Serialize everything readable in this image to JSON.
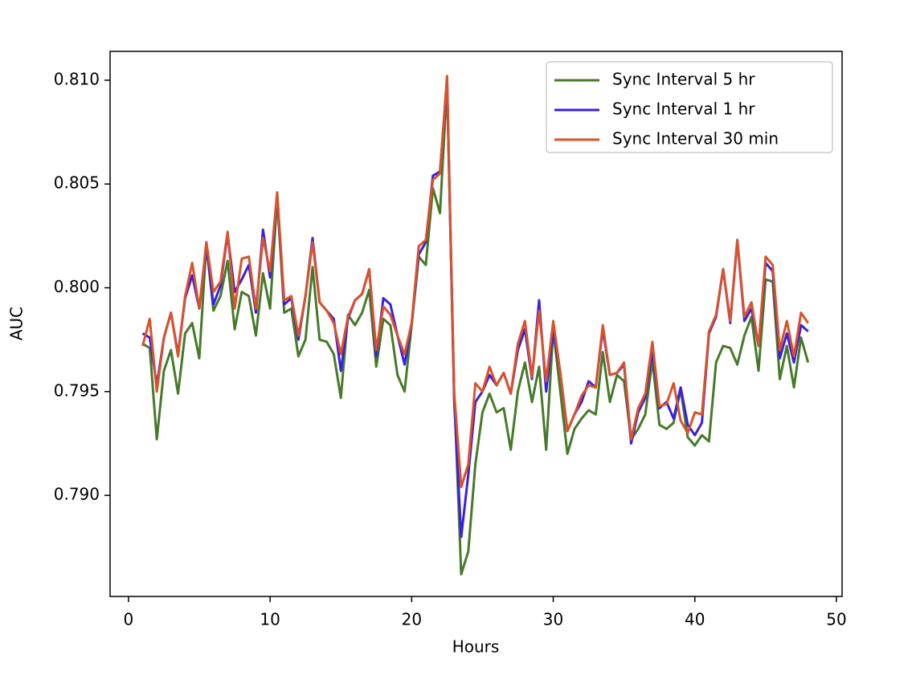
{
  "chart_data": {
    "type": "line",
    "x_label": "Hours",
    "y_label": "AUC",
    "x": [
      1,
      1.5,
      2,
      2.5,
      3,
      3.5,
      4,
      4.5,
      5,
      5.5,
      6,
      6.5,
      7,
      7.5,
      8,
      8.5,
      9,
      9.5,
      10,
      10.5,
      11,
      11.5,
      12,
      12.5,
      13,
      13.5,
      14,
      14.5,
      15,
      15.5,
      16,
      16.5,
      17,
      17.5,
      18,
      18.5,
      19,
      19.5,
      20,
      20.5,
      21,
      21.5,
      22,
      22.5,
      23,
      23.5,
      24,
      24.5,
      25,
      25.5,
      26,
      26.5,
      27,
      27.5,
      28,
      28.5,
      29,
      29.5,
      30,
      30.5,
      31,
      31.5,
      32,
      32.5,
      33,
      33.5,
      34,
      34.5,
      35,
      35.5,
      36,
      36.5,
      37,
      37.5,
      38,
      38.5,
      39,
      39.5,
      40,
      40.5,
      41,
      41.5,
      42,
      42.5,
      43,
      43.5,
      44,
      44.5,
      45,
      45.5,
      46,
      46.5,
      47,
      47.5,
      48
    ],
    "series": [
      {
        "name": "Sync Interval 5 hr",
        "color": "#467a2a",
        "values": [
          0.7973,
          0.7971,
          0.7927,
          0.796,
          0.797,
          0.7949,
          0.7978,
          0.7983,
          0.7966,
          0.8021,
          0.7989,
          0.7996,
          0.8013,
          0.798,
          0.7998,
          0.7996,
          0.7977,
          0.8007,
          0.799,
          0.8043,
          0.7988,
          0.799,
          0.7967,
          0.7975,
          0.801,
          0.7975,
          0.7974,
          0.7968,
          0.7947,
          0.7987,
          0.7982,
          0.7988,
          0.7999,
          0.7962,
          0.7985,
          0.7982,
          0.7958,
          0.795,
          0.7982,
          0.8015,
          0.8011,
          0.8048,
          0.8036,
          0.8098,
          0.795,
          0.7862,
          0.7873,
          0.7915,
          0.794,
          0.7949,
          0.794,
          0.7942,
          0.7922,
          0.795,
          0.7964,
          0.7945,
          0.7962,
          0.7922,
          0.798,
          0.795,
          0.792,
          0.7932,
          0.7937,
          0.7941,
          0.7939,
          0.7969,
          0.7945,
          0.7958,
          0.7955,
          0.7927,
          0.7932,
          0.7939,
          0.7965,
          0.7934,
          0.7932,
          0.7935,
          0.7951,
          0.7928,
          0.7924,
          0.7929,
          0.7926,
          0.7964,
          0.7972,
          0.7971,
          0.7963,
          0.7977,
          0.7986,
          0.796,
          0.8004,
          0.8003,
          0.7956,
          0.7972,
          0.7952,
          0.7976,
          0.7964
        ]
      },
      {
        "name": "Sync Interval 1 hr",
        "color": "#3a1fe0",
        "values": [
          0.7978,
          0.7976,
          0.7953,
          0.7976,
          0.7988,
          0.7968,
          0.7995,
          0.8006,
          0.799,
          0.802,
          0.7992,
          0.8001,
          0.8026,
          0.7998,
          0.8004,
          0.8011,
          0.7988,
          0.8028,
          0.8005,
          0.8045,
          0.7992,
          0.7995,
          0.7975,
          0.7996,
          0.8024,
          0.7993,
          0.7989,
          0.7985,
          0.796,
          0.7985,
          0.7994,
          0.7997,
          0.8009,
          0.7967,
          0.7995,
          0.7992,
          0.7977,
          0.7963,
          0.7983,
          0.8016,
          0.8022,
          0.8054,
          0.8056,
          0.81,
          0.7946,
          0.788,
          0.791,
          0.7945,
          0.795,
          0.7958,
          0.7953,
          0.7959,
          0.7949,
          0.797,
          0.798,
          0.7956,
          0.7994,
          0.795,
          0.798,
          0.7959,
          0.7931,
          0.7939,
          0.7945,
          0.7955,
          0.7952,
          0.798,
          0.7958,
          0.7959,
          0.7963,
          0.7925,
          0.794,
          0.7947,
          0.797,
          0.7942,
          0.7945,
          0.7937,
          0.7952,
          0.7934,
          0.7929,
          0.7935,
          0.7978,
          0.7986,
          0.8009,
          0.7983,
          0.8023,
          0.7984,
          0.799,
          0.7972,
          0.8012,
          0.8008,
          0.7966,
          0.7978,
          0.7964,
          0.7982,
          0.7979
        ]
      },
      {
        "name": "Sync Interval 30 min",
        "color": "#d9522a",
        "values": [
          0.7972,
          0.7985,
          0.795,
          0.7976,
          0.7988,
          0.7967,
          0.7996,
          0.8012,
          0.799,
          0.8022,
          0.7998,
          0.8003,
          0.8027,
          0.799,
          0.8014,
          0.8015,
          0.799,
          0.8024,
          0.8008,
          0.8046,
          0.7994,
          0.7996,
          0.7977,
          0.7996,
          0.8022,
          0.7993,
          0.7989,
          0.7983,
          0.7968,
          0.7986,
          0.7994,
          0.7997,
          0.8009,
          0.797,
          0.7991,
          0.7987,
          0.7977,
          0.7968,
          0.7983,
          0.802,
          0.8023,
          0.8052,
          0.8055,
          0.8102,
          0.795,
          0.7904,
          0.7915,
          0.7954,
          0.795,
          0.7962,
          0.7953,
          0.7959,
          0.7949,
          0.7973,
          0.7984,
          0.7957,
          0.7989,
          0.7955,
          0.7984,
          0.7959,
          0.7931,
          0.7939,
          0.7948,
          0.7953,
          0.7952,
          0.7982,
          0.7958,
          0.7959,
          0.7964,
          0.7927,
          0.7942,
          0.7949,
          0.7974,
          0.7943,
          0.7944,
          0.7954,
          0.7936,
          0.793,
          0.794,
          0.7939,
          0.7979,
          0.7987,
          0.8009,
          0.7984,
          0.8023,
          0.7986,
          0.7993,
          0.7972,
          0.8015,
          0.8011,
          0.797,
          0.7984,
          0.7967,
          0.7988,
          0.7983
        ]
      }
    ],
    "xlim": [
      -1.3,
      50.4
    ],
    "xticks": [
      0,
      10,
      20,
      30,
      40,
      50
    ],
    "ylim": [
      0.78513,
      0.81139
    ],
    "yticks": [
      {
        "value": 0.79,
        "label": "0.790"
      },
      {
        "value": 0.795,
        "label": "0.795"
      },
      {
        "value": 0.8,
        "label": "0.800"
      },
      {
        "value": 0.805,
        "label": "0.805"
      },
      {
        "value": 0.81,
        "label": "0.810"
      }
    ],
    "legend": "upper right"
  }
}
